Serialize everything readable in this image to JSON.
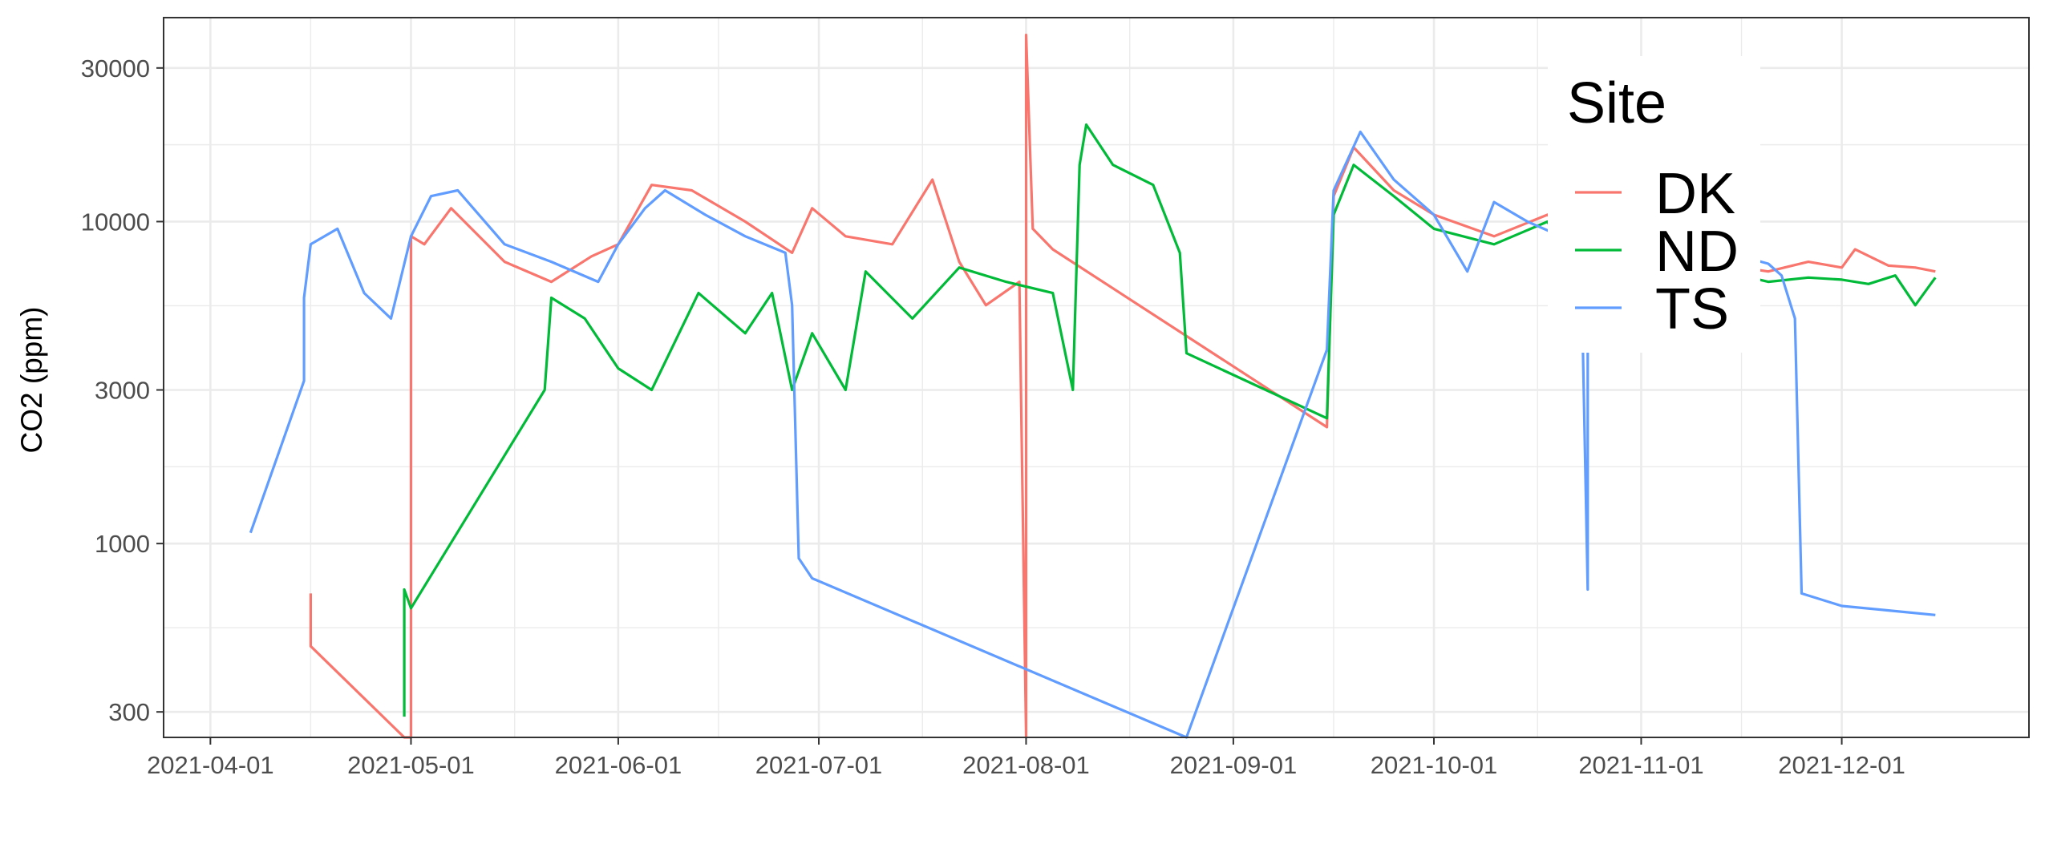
{
  "chart_data": {
    "type": "line",
    "title": "",
    "xlabel": "",
    "ylabel": "CO2 (ppm)",
    "y_scale": "log10",
    "ylim": [
      250,
      43000
    ],
    "xlim": [
      "2021-03-25",
      "2021-12-29"
    ],
    "grid": true,
    "legend": {
      "title": "Site",
      "position": "top-right (inside plot)"
    },
    "x_ticks": [
      "2021-04-01",
      "2021-05-01",
      "2021-06-01",
      "2021-07-01",
      "2021-08-01",
      "2021-09-01",
      "2021-10-01",
      "2021-11-01",
      "2021-12-01"
    ],
    "y_ticks": [
      {
        "value": 300,
        "label": "300"
      },
      {
        "value": 1000,
        "label": "1000"
      },
      {
        "value": 3000,
        "label": "3000"
      },
      {
        "value": 10000,
        "label": "10000"
      },
      {
        "value": 30000,
        "label": "30000"
      }
    ],
    "colors": {
      "DK": "#F8766D",
      "ND": "#00BA38",
      "TS": "#619CFF"
    },
    "series": [
      {
        "name": "DK",
        "points": [
          [
            "2021-04-16",
            700
          ],
          [
            "2021-04-16",
            560
          ],
          [
            "2021-04-16",
            480
          ],
          [
            "2021-04-30",
            250
          ],
          [
            "2021-05-01",
            250
          ],
          [
            "2021-05-01",
            9000
          ],
          [
            "2021-05-03",
            8500
          ],
          [
            "2021-05-07",
            11000
          ],
          [
            "2021-05-15",
            7500
          ],
          [
            "2021-05-22",
            6500
          ],
          [
            "2021-05-28",
            7800
          ],
          [
            "2021-06-01",
            8500
          ],
          [
            "2021-06-06",
            13000
          ],
          [
            "2021-06-12",
            12500
          ],
          [
            "2021-06-20",
            10000
          ],
          [
            "2021-06-27",
            8000
          ],
          [
            "2021-06-30",
            11000
          ],
          [
            "2021-07-05",
            9000
          ],
          [
            "2021-07-12",
            8500
          ],
          [
            "2021-07-18",
            13500
          ],
          [
            "2021-07-22",
            7500
          ],
          [
            "2021-07-26",
            5500
          ],
          [
            "2021-07-31",
            6500
          ],
          [
            "2021-08-01",
            250
          ],
          [
            "2021-08-01",
            38000
          ],
          [
            "2021-08-02",
            9500
          ],
          [
            "2021-08-05",
            8200
          ],
          [
            "2021-09-15",
            2300
          ],
          [
            "2021-09-16",
            12000
          ],
          [
            "2021-09-19",
            17000
          ],
          [
            "2021-09-25",
            12500
          ],
          [
            "2021-10-01",
            10500
          ],
          [
            "2021-10-10",
            9000
          ],
          [
            "2021-10-18",
            10500
          ],
          [
            "2021-10-20",
            9500
          ],
          [
            "2021-11-16",
            7200
          ],
          [
            "2021-11-20",
            7000
          ],
          [
            "2021-11-26",
            7500
          ],
          [
            "2021-12-01",
            7200
          ],
          [
            "2021-12-03",
            8200
          ],
          [
            "2021-12-08",
            7300
          ],
          [
            "2021-12-12",
            7200
          ],
          [
            "2021-12-15",
            7000
          ]
        ]
      },
      {
        "name": "ND",
        "points": [
          [
            "2021-04-30",
            290
          ],
          [
            "2021-04-30",
            720
          ],
          [
            "2021-05-01",
            630
          ],
          [
            "2021-05-21",
            3000
          ],
          [
            "2021-05-22",
            5800
          ],
          [
            "2021-05-27",
            5000
          ],
          [
            "2021-06-01",
            3500
          ],
          [
            "2021-06-06",
            3000
          ],
          [
            "2021-06-13",
            6000
          ],
          [
            "2021-06-20",
            4500
          ],
          [
            "2021-06-24",
            6000
          ],
          [
            "2021-06-27",
            3000
          ],
          [
            "2021-06-30",
            4500
          ],
          [
            "2021-07-05",
            3000
          ],
          [
            "2021-07-08",
            7000
          ],
          [
            "2021-07-15",
            5000
          ],
          [
            "2021-07-22",
            7200
          ],
          [
            "2021-07-29",
            6500
          ],
          [
            "2021-08-05",
            6000
          ],
          [
            "2021-08-08",
            3000
          ],
          [
            "2021-08-09",
            15000
          ],
          [
            "2021-08-10",
            20000
          ],
          [
            "2021-08-14",
            15000
          ],
          [
            "2021-08-20",
            13000
          ],
          [
            "2021-08-24",
            8000
          ],
          [
            "2021-08-25",
            3900
          ],
          [
            "2021-09-15",
            2450
          ],
          [
            "2021-09-16",
            10500
          ],
          [
            "2021-09-19",
            15000
          ],
          [
            "2021-09-25",
            12000
          ],
          [
            "2021-10-01",
            9500
          ],
          [
            "2021-10-10",
            8500
          ],
          [
            "2021-10-18",
            10000
          ],
          [
            "2021-10-20",
            8500
          ],
          [
            "2021-11-16",
            6800
          ],
          [
            "2021-11-20",
            6500
          ],
          [
            "2021-11-26",
            6700
          ],
          [
            "2021-12-01",
            6600
          ],
          [
            "2021-12-05",
            6400
          ],
          [
            "2021-12-09",
            6800
          ],
          [
            "2021-12-12",
            5500
          ],
          [
            "2021-12-15",
            6700
          ]
        ]
      },
      {
        "name": "TS",
        "points": [
          [
            "2021-04-07",
            1080
          ],
          [
            "2021-04-15",
            3200
          ],
          [
            "2021-04-15",
            5800
          ],
          [
            "2021-04-16",
            8500
          ],
          [
            "2021-04-20",
            9500
          ],
          [
            "2021-04-24",
            6000
          ],
          [
            "2021-04-28",
            5000
          ],
          [
            "2021-05-01",
            9000
          ],
          [
            "2021-05-04",
            12000
          ],
          [
            "2021-05-08",
            12500
          ],
          [
            "2021-05-15",
            8500
          ],
          [
            "2021-05-22",
            7500
          ],
          [
            "2021-05-29",
            6500
          ],
          [
            "2021-06-01",
            8500
          ],
          [
            "2021-06-05",
            11000
          ],
          [
            "2021-06-08",
            12500
          ],
          [
            "2021-06-14",
            10500
          ],
          [
            "2021-06-20",
            9000
          ],
          [
            "2021-06-26",
            8000
          ],
          [
            "2021-06-27",
            5500
          ],
          [
            "2021-06-28",
            900
          ],
          [
            "2021-06-30",
            780
          ],
          [
            "2021-08-25",
            250
          ],
          [
            "2021-09-15",
            4000
          ],
          [
            "2021-09-16",
            12500
          ],
          [
            "2021-09-20",
            19000
          ],
          [
            "2021-09-25",
            13500
          ],
          [
            "2021-10-01",
            10500
          ],
          [
            "2021-10-06",
            7000
          ],
          [
            "2021-10-10",
            11500
          ],
          [
            "2021-10-15",
            10000
          ],
          [
            "2021-10-20",
            9000
          ],
          [
            "2021-10-23",
            8000
          ],
          [
            "2021-10-24",
            720
          ],
          [
            "2021-10-24",
            5000
          ],
          [
            "2021-11-16",
            7800
          ],
          [
            "2021-11-20",
            7400
          ],
          [
            "2021-11-22",
            6800
          ],
          [
            "2021-11-24",
            5000
          ],
          [
            "2021-11-25",
            700
          ],
          [
            "2021-12-01",
            640
          ],
          [
            "2021-12-08",
            620
          ],
          [
            "2021-12-15",
            600
          ]
        ]
      }
    ]
  }
}
